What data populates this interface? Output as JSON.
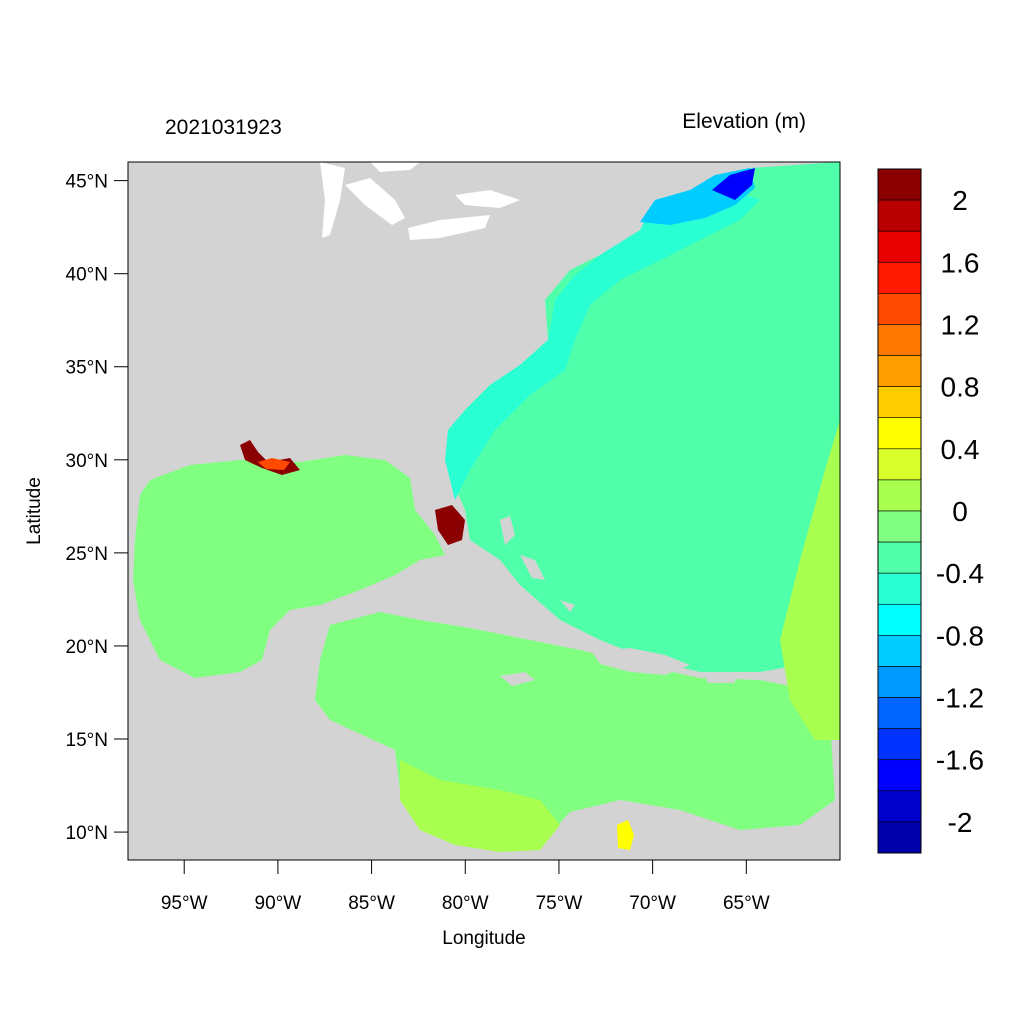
{
  "header": {
    "timestamp": "2021031923",
    "variable": "Elevation (m)"
  },
  "axes": {
    "xlabel": "Longitude",
    "ylabel": "Latitude",
    "x_ticks": [
      "95°W",
      "90°W",
      "85°W",
      "80°W",
      "75°W",
      "70°W",
      "65°W"
    ],
    "y_ticks": [
      "45°N",
      "40°N",
      "35°N",
      "30°N",
      "25°N",
      "20°N",
      "15°N",
      "10°N"
    ],
    "x_range_deg": [
      -98,
      -60
    ],
    "y_range_deg": [
      8.5,
      46
    ]
  },
  "colorbar": {
    "labels": [
      "2",
      "1.6",
      "1.2",
      "0.8",
      "0.4",
      "0",
      "-0.4",
      "-0.8",
      "-1.2",
      "-1.6",
      "-2"
    ],
    "colors": [
      "#8b0000",
      "#b80000",
      "#e60000",
      "#ff1a00",
      "#ff4a00",
      "#ff7800",
      "#ffa000",
      "#ffcc00",
      "#ffff00",
      "#d8ff2a",
      "#a8ff50",
      "#80ff80",
      "#50ffaa",
      "#2affd4",
      "#00ffff",
      "#00ccff",
      "#0099ff",
      "#0066ff",
      "#0033ff",
      "#0000ff",
      "#0000cc",
      "#0000aa"
    ]
  },
  "map_colors": {
    "land": "#d3d3d3",
    "lakes": "#ffffff",
    "gulf_caribbean": "#80ff80",
    "atlantic": "#50ffaa",
    "shelf": "#2affd4",
    "gulf_of_maine": "#00ccff",
    "bay_of_fundy": "#0000ff",
    "surge_high": "#8b0000",
    "surge_mid": "#ff4a00",
    "shallow_plus": "#a8ff50",
    "yellow": "#ffff00"
  }
}
